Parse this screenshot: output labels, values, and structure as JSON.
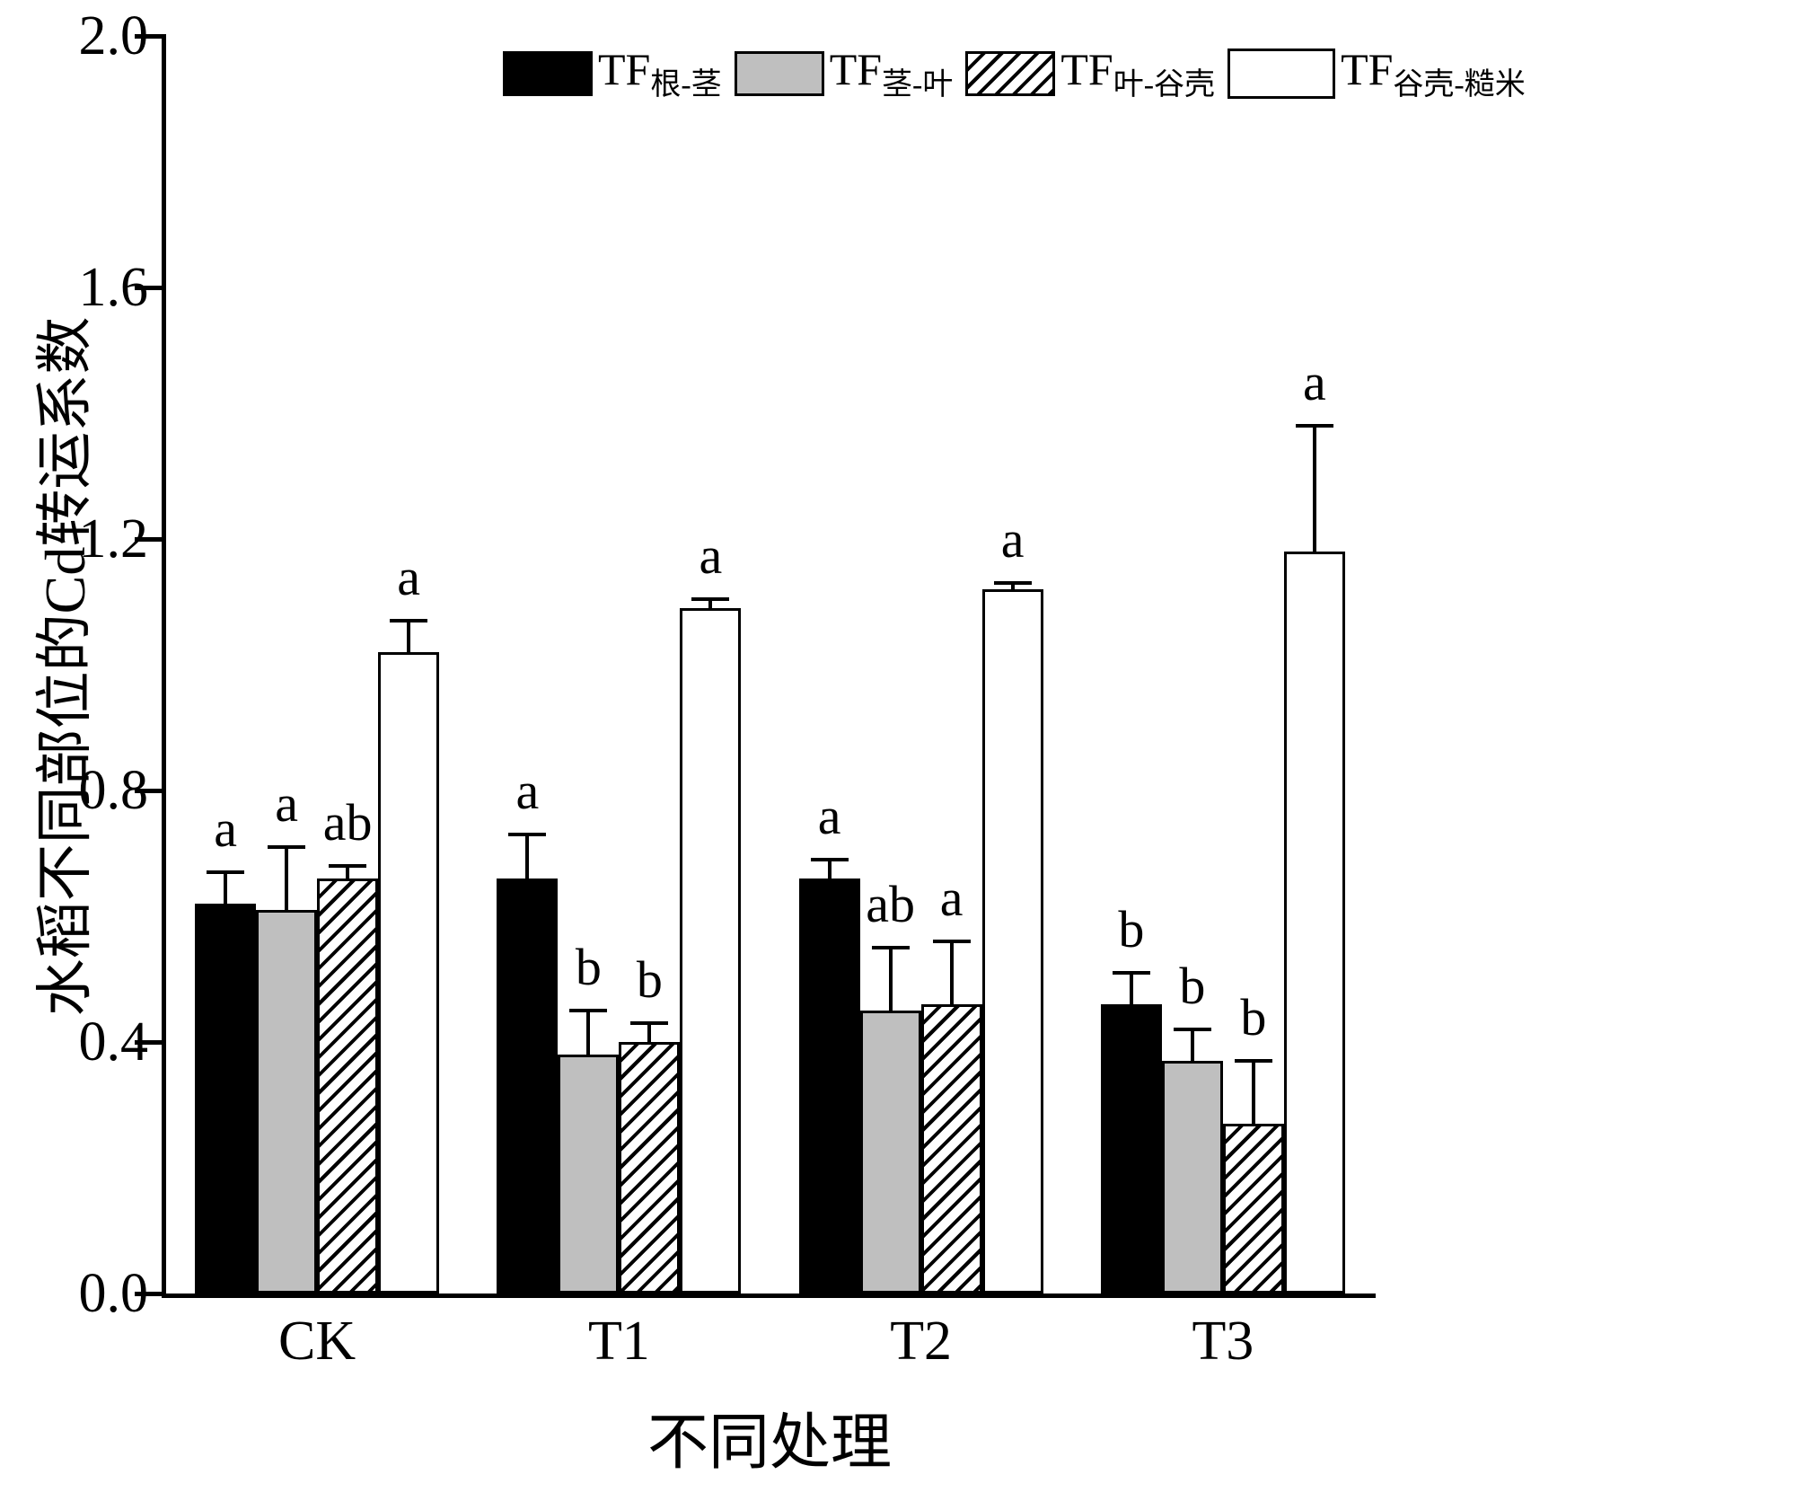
{
  "chart_data": {
    "type": "bar",
    "title": "",
    "xlabel": "不同处理",
    "ylabel": "水稻不同部位的Cd转运系数",
    "ylim": [
      0,
      2.0
    ],
    "ytick_labels": [
      "0.0",
      "0.4",
      "0.8",
      "1.2",
      "1.6",
      "2.0"
    ],
    "categories": [
      "CK",
      "T1",
      "T2",
      "T3"
    ],
    "grid": false,
    "legend_position": "top",
    "series": [
      {
        "name": "TF根-茎",
        "label_prefix": "TF",
        "label_subscript": "根-茎",
        "fill": "black",
        "values": [
          0.62,
          0.66,
          0.66,
          0.46
        ],
        "errors": [
          0.05,
          0.07,
          0.03,
          0.05
        ],
        "letters": [
          "a",
          "a",
          "a",
          "b"
        ]
      },
      {
        "name": "TF茎-叶",
        "label_prefix": "TF",
        "label_subscript": "茎-叶",
        "fill": "gray",
        "values": [
          0.61,
          0.38,
          0.45,
          0.37
        ],
        "errors": [
          0.1,
          0.07,
          0.1,
          0.05
        ],
        "letters": [
          "a",
          "b",
          "ab",
          "b"
        ]
      },
      {
        "name": "TF叶-谷壳",
        "label_prefix": "TF",
        "label_subscript": "叶-谷壳",
        "fill": "hatch",
        "values": [
          0.66,
          0.4,
          0.46,
          0.27
        ],
        "errors": [
          0.02,
          0.03,
          0.1,
          0.1
        ],
        "letters": [
          "ab",
          "b",
          "a",
          "b"
        ]
      },
      {
        "name": "TF谷壳-糙米",
        "label_prefix": "TF",
        "label_subscript": "谷壳-糙米",
        "fill": "white",
        "values": [
          1.02,
          1.09,
          1.12,
          1.18
        ],
        "errors": [
          0.05,
          0.015,
          0.01,
          0.2
        ],
        "letters": [
          "a",
          "a",
          "a",
          "a"
        ]
      }
    ],
    "colors": {
      "black": "#000000",
      "gray": "#bfbfbf",
      "white": "#ffffff",
      "axis": "#000000"
    }
  }
}
